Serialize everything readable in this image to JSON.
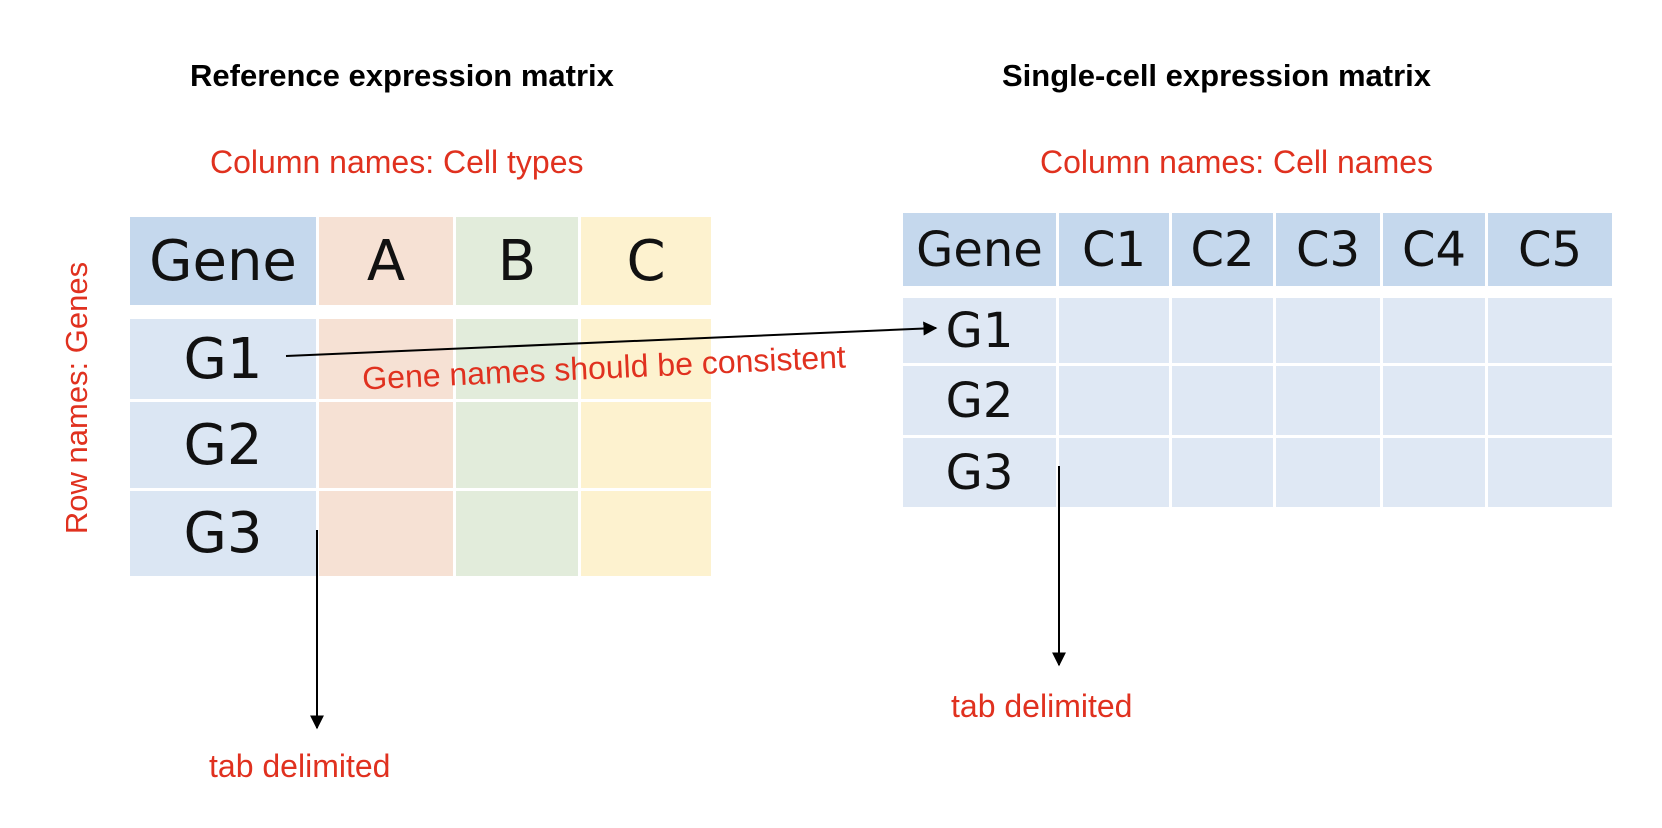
{
  "reference": {
    "title": "Reference expression matrix",
    "column_note": "Column names: Cell types",
    "row_note": "Row names: Genes",
    "header": [
      "Gene",
      "A",
      "B",
      "C"
    ],
    "rows": [
      "G1",
      "G2",
      "G3"
    ],
    "delimiter_note": "tab delimited",
    "colors": {
      "gene": "#c5d8ed",
      "rows": "#dbe6f3",
      "A": "#f6e1d4",
      "B": "#e2ecdb",
      "C": "#fdf2cf"
    }
  },
  "single_cell": {
    "title": "Single-cell expression matrix",
    "column_note": "Column names: Cell names",
    "header": [
      "Gene",
      "C1",
      "C2",
      "C3",
      "C4",
      "C5"
    ],
    "rows": [
      "G1",
      "G2",
      "G3"
    ],
    "delimiter_note": "tab delimited",
    "colors": {
      "header": "#c5d8ed",
      "rows": "#dfe8f4"
    }
  },
  "link_note": "Gene names should be consistent",
  "accent": "#e0311f"
}
